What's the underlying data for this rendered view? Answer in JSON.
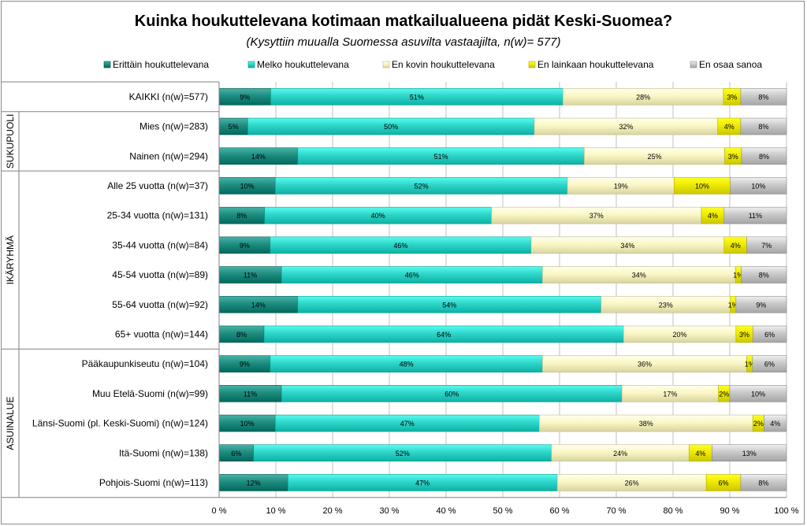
{
  "chart_data": {
    "type": "bar",
    "orientation": "horizontal",
    "stacked": true,
    "percent_stacked": true,
    "title": "Kuinka houkuttelevana kotimaan matkailualueena pidät Keski-Suomea?",
    "subtitle": "(Kysyttiin muualla Suomessa asuvilta vastaajilta, n(w)= 577)",
    "legend_position": "top",
    "xlim": [
      0,
      100
    ],
    "x_ticks": [
      0,
      10,
      20,
      30,
      40,
      50,
      60,
      70,
      80,
      90,
      100
    ],
    "x_tick_labels": [
      "0 %",
      "10 %",
      "20 %",
      "30 %",
      "40 %",
      "50 %",
      "60 %",
      "70 %",
      "80 %",
      "90 %",
      "100 %"
    ],
    "categories": [
      "KAIKKI (n(w)=577)",
      "Mies (n(w)=283)",
      "Nainen (n(w)=294)",
      "Alle 25 vuotta (n(w)=37)",
      "25-34 vuotta (n(w)=131)",
      "35-44 vuotta (n(w)=84)",
      "45-54 vuotta (n(w)=89)",
      "55-64 vuotta (n(w)=92)",
      "65+ vuotta (n(w)=144)",
      "Pääkaupunkiseutu (n(w)=104)",
      "Muu Etelä-Suomi (n(w)=99)",
      "Länsi-Suomi (pl. Keski-Suomi) (n(w)=124)",
      "Itä-Suomi (n(w)=138)",
      "Pohjois-Suomi (n(w)=113)"
    ],
    "groups": [
      {
        "label": "",
        "start": 0,
        "end": 0
      },
      {
        "label": "SUKUPUOLI",
        "start": 1,
        "end": 2
      },
      {
        "label": "IKÄRYHMÄ",
        "start": 3,
        "end": 8
      },
      {
        "label": "ASUINALUE",
        "start": 9,
        "end": 13
      }
    ],
    "series": [
      {
        "name": "Erittäin houkuttelevana",
        "color": "#1f8c80",
        "values": [
          9,
          5,
          14,
          10,
          8,
          9,
          11,
          14,
          8,
          9,
          11,
          10,
          6,
          12
        ],
        "labels": [
          "9%",
          "5%",
          "14%",
          "10%",
          "8%",
          "9%",
          "11%",
          "14%",
          "8%",
          "9%",
          "11%",
          "10%",
          "6%",
          "12%"
        ]
      },
      {
        "name": "Melko houkuttelevana",
        "color": "#2ed5c8",
        "values": [
          51,
          50,
          51,
          52,
          40,
          46,
          46,
          54,
          64,
          48,
          60,
          47,
          52,
          47
        ],
        "labels": [
          "51%",
          "50%",
          "51%",
          "52%",
          "40%",
          "46%",
          "46%",
          "54%",
          "64%",
          "48%",
          "60%",
          "47%",
          "52%",
          "47%"
        ]
      },
      {
        "name": "En kovin houkuttelevana",
        "color": "#fbf7c4",
        "values": [
          28,
          32,
          25,
          19,
          37,
          34,
          34,
          23,
          20,
          36,
          17,
          38,
          24,
          26
        ],
        "labels": [
          "28%",
          "32%",
          "25%",
          "19%",
          "37%",
          "34%",
          "34%",
          "23%",
          "20%",
          "36%",
          "17%",
          "38%",
          "24%",
          "26%"
        ]
      },
      {
        "name": "En lainkaan houkuttelevana",
        "color": "#eeea00",
        "values": [
          3,
          4,
          3,
          10,
          4,
          4,
          1,
          1,
          3,
          1,
          2,
          2,
          4,
          6
        ],
        "labels": [
          "3%",
          "4%",
          "3%",
          "10%",
          "4%",
          "4%",
          "1%",
          "1%",
          "3%",
          "1%",
          "2%",
          "2%",
          "4%",
          "6%"
        ]
      },
      {
        "name": "En osaa sanoa",
        "color": "#c8c8c8",
        "values": [
          8,
          8,
          8,
          10,
          11,
          7,
          8,
          9,
          6,
          6,
          10,
          4,
          13,
          8
        ],
        "labels": [
          "8%",
          "8%",
          "8%",
          "10%",
          "11%",
          "7%",
          "8%",
          "9%",
          "6%",
          "6%",
          "10%",
          "4%",
          "13%",
          "8%"
        ]
      }
    ]
  }
}
